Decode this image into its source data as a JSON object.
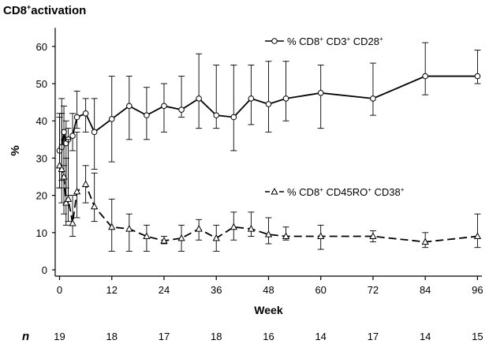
{
  "title_main": "CD8",
  "title_sup": "+",
  "title_rest": "activation",
  "chart_data": {
    "type": "line",
    "xlabel": "Week",
    "ylabel": "%",
    "xlim": [
      -1,
      97
    ],
    "ylim": [
      0,
      65
    ],
    "xticks": [
      0,
      12,
      24,
      36,
      48,
      60,
      72,
      84,
      96
    ],
    "yticks": [
      0,
      10,
      20,
      30,
      40,
      50,
      60
    ],
    "n_label": "n",
    "n_row": [
      {
        "x": 0,
        "n": "19"
      },
      {
        "x": 12,
        "n": "18"
      },
      {
        "x": 24,
        "n": "17"
      },
      {
        "x": 36,
        "n": "18"
      },
      {
        "x": 48,
        "n": "16"
      },
      {
        "x": 60,
        "n": "14"
      },
      {
        "x": 72,
        "n": "17"
      },
      {
        "x": 84,
        "n": "14"
      },
      {
        "x": 96,
        "n": "15"
      }
    ],
    "series": [
      {
        "name": "% CD8+ CD3+ CD28+",
        "legend_parts": {
          "pre": "% CD8",
          "s1": "+",
          "mid1": " CD3",
          "s2": "+",
          "mid2": " CD28",
          "s3": "+"
        },
        "marker": "circle",
        "dash": "solid",
        "points": [
          {
            "x": 0,
            "y": 32,
            "lo": 22,
            "hi": 42
          },
          {
            "x": 0.5,
            "y": 33,
            "lo": 24,
            "hi": 46
          },
          {
            "x": 1,
            "y": 37,
            "lo": 28,
            "hi": 44
          },
          {
            "x": 1.5,
            "y": 34,
            "lo": 22,
            "hi": 40
          },
          {
            "x": 2,
            "y": 35,
            "lo": 20,
            "hi": 38
          },
          {
            "x": 3,
            "y": 36,
            "lo": 32,
            "hi": 42
          },
          {
            "x": 4,
            "y": 41,
            "lo": 38,
            "hi": 48
          },
          {
            "x": 6,
            "y": 42,
            "lo": 37,
            "hi": 46
          },
          {
            "x": 8,
            "y": 37,
            "lo": 27,
            "hi": 46
          },
          {
            "x": 12,
            "y": 40.5,
            "lo": 29,
            "hi": 52
          },
          {
            "x": 16,
            "y": 44,
            "lo": 35,
            "hi": 52
          },
          {
            "x": 20,
            "y": 41.5,
            "lo": 35,
            "hi": 49
          },
          {
            "x": 24,
            "y": 44,
            "lo": 37,
            "hi": 50
          },
          {
            "x": 28,
            "y": 43,
            "lo": 41,
            "hi": 52
          },
          {
            "x": 32,
            "y": 46,
            "lo": 38,
            "hi": 58
          },
          {
            "x": 36,
            "y": 41.5,
            "lo": 38,
            "hi": 55
          },
          {
            "x": 40,
            "y": 41,
            "lo": 32,
            "hi": 55
          },
          {
            "x": 44,
            "y": 46,
            "lo": 39,
            "hi": 55
          },
          {
            "x": 48,
            "y": 44.5,
            "lo": 37,
            "hi": 56
          },
          {
            "x": 52,
            "y": 46,
            "lo": 40,
            "hi": 56
          },
          {
            "x": 60,
            "y": 47.5,
            "lo": 38,
            "hi": 55
          },
          {
            "x": 72,
            "y": 46,
            "lo": 41.5,
            "hi": 55.5
          },
          {
            "x": 84,
            "y": 52,
            "lo": 47,
            "hi": 61
          },
          {
            "x": 96,
            "y": 52,
            "lo": 50,
            "hi": 59
          }
        ]
      },
      {
        "name": "% CD8+ CD45RO+ CD38+",
        "legend_parts": {
          "pre": "% CD8",
          "s1": "+",
          "mid1": " CD45RO",
          "s2": "+",
          "mid2": " CD38",
          "s3": "+"
        },
        "marker": "triangle",
        "dash": "dashed",
        "points": [
          {
            "x": 0,
            "y": 28,
            "lo": 22,
            "hi": 41
          },
          {
            "x": 0.5,
            "y": 27,
            "lo": 18,
            "hi": 42
          },
          {
            "x": 1,
            "y": 25,
            "lo": 15,
            "hi": 35
          },
          {
            "x": 1.5,
            "y": 18,
            "lo": 12,
            "hi": 30
          },
          {
            "x": 2,
            "y": 19,
            "lo": 13,
            "hi": 35
          },
          {
            "x": 3,
            "y": 12.5,
            "lo": 9,
            "hi": 20
          },
          {
            "x": 4,
            "y": 21,
            "lo": 14,
            "hi": 37
          },
          {
            "x": 6,
            "y": 23,
            "lo": 18,
            "hi": 28
          },
          {
            "x": 8,
            "y": 17,
            "lo": 13,
            "hi": 26
          },
          {
            "x": 12,
            "y": 11.5,
            "lo": 5,
            "hi": 19
          },
          {
            "x": 16,
            "y": 11,
            "lo": 5,
            "hi": 15
          },
          {
            "x": 20,
            "y": 9,
            "lo": 5,
            "hi": 12
          },
          {
            "x": 24,
            "y": 7.8,
            "lo": 7,
            "hi": 9
          },
          {
            "x": 28,
            "y": 8.5,
            "lo": 5,
            "hi": 12
          },
          {
            "x": 32,
            "y": 11,
            "lo": 8,
            "hi": 13.5
          },
          {
            "x": 36,
            "y": 8.5,
            "lo": 5,
            "hi": 12
          },
          {
            "x": 40,
            "y": 11.5,
            "lo": 8,
            "hi": 15.5
          },
          {
            "x": 44,
            "y": 11,
            "lo": 9,
            "hi": 15.5
          },
          {
            "x": 48,
            "y": 9.5,
            "lo": 7,
            "hi": 14
          },
          {
            "x": 52,
            "y": 9,
            "lo": 8,
            "hi": 11.5
          },
          {
            "x": 60,
            "y": 9,
            "lo": 5.5,
            "hi": 12
          },
          {
            "x": 72,
            "y": 9,
            "lo": 7.5,
            "hi": 10.5
          },
          {
            "x": 84,
            "y": 7.5,
            "lo": 6,
            "hi": 10
          },
          {
            "x": 96,
            "y": 9,
            "lo": 6,
            "hi": 15
          }
        ]
      }
    ]
  }
}
